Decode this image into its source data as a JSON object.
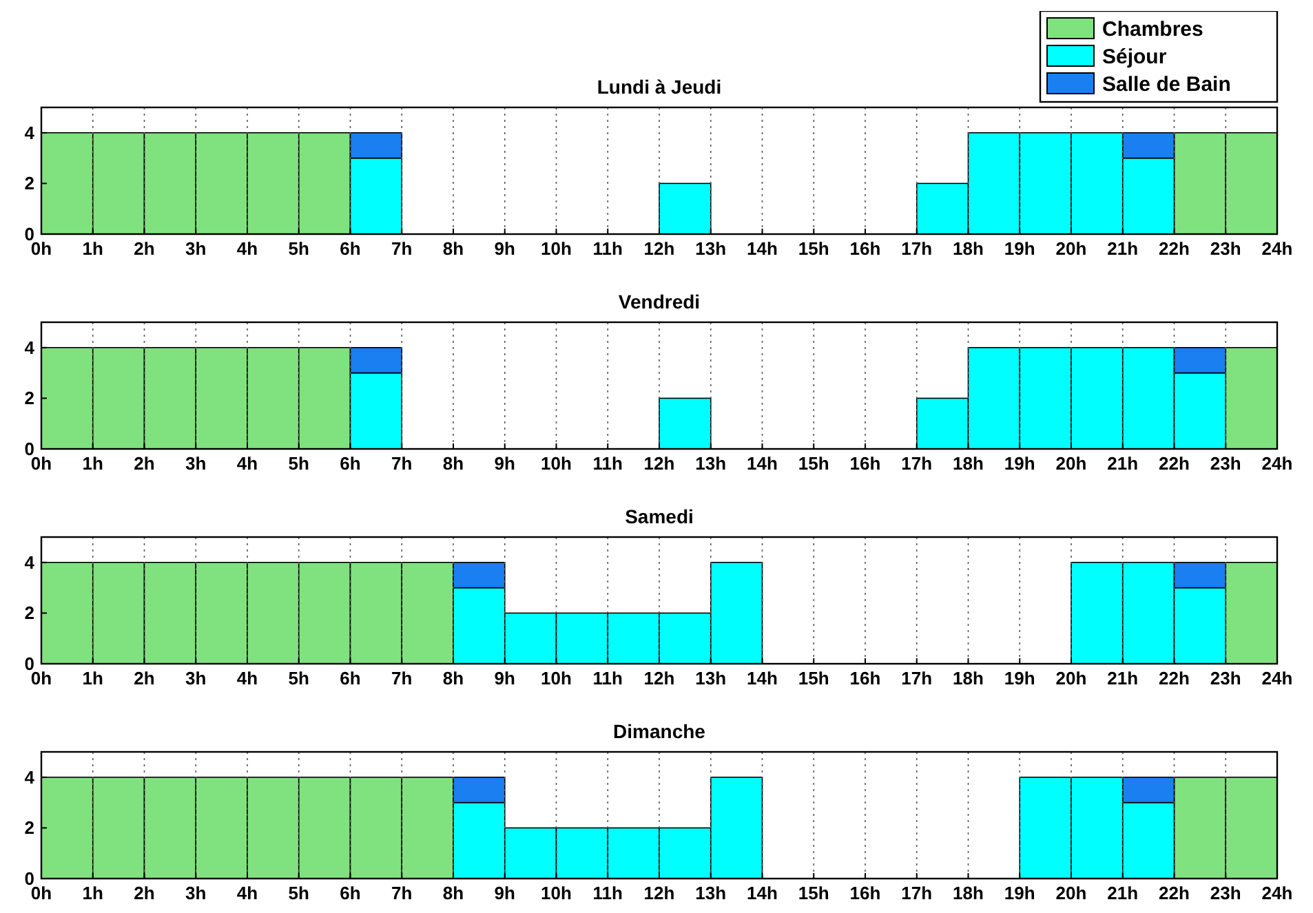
{
  "chart_data": [
    {
      "type": "bar",
      "title": "Lundi à Jeudi",
      "stacked": true,
      "grid": "x",
      "legend": "top right",
      "x": [
        0.5,
        1.5,
        2.5,
        3.5,
        4.5,
        5.5,
        6.5,
        7.5,
        8.5,
        9.5,
        10.5,
        11.5,
        12.5,
        13.5,
        14.5,
        15.5,
        16.5,
        17.5,
        18.5,
        19.5,
        20.5,
        21.5,
        22.5,
        23.5
      ],
      "xlim": [
        0,
        24
      ],
      "xticks": [
        {
          "value": 0,
          "label": "0h"
        },
        {
          "value": 1,
          "label": "1h"
        },
        {
          "value": 2,
          "label": "2h"
        },
        {
          "value": 3,
          "label": "3h"
        },
        {
          "value": 4,
          "label": "4h"
        },
        {
          "value": 5,
          "label": "5h"
        },
        {
          "value": 6,
          "label": "6h"
        },
        {
          "value": 7,
          "label": "7h"
        },
        {
          "value": 8,
          "label": "8h"
        },
        {
          "value": 9,
          "label": "9h"
        },
        {
          "value": 10,
          "label": "10h"
        },
        {
          "value": 11,
          "label": "11h"
        },
        {
          "value": 12,
          "label": "12h"
        },
        {
          "value": 13,
          "label": "13h"
        },
        {
          "value": 14,
          "label": "14h"
        },
        {
          "value": 15,
          "label": "15h"
        },
        {
          "value": 16,
          "label": "16h"
        },
        {
          "value": 17,
          "label": "17h"
        },
        {
          "value": 18,
          "label": "18h"
        },
        {
          "value": 19,
          "label": "19h"
        },
        {
          "value": 20,
          "label": "20h"
        },
        {
          "value": 21,
          "label": "21h"
        },
        {
          "value": 22,
          "label": "22h"
        },
        {
          "value": 23,
          "label": "23h"
        },
        {
          "value": 24,
          "label": "24h"
        }
      ],
      "ylim": [
        0,
        5
      ],
      "yticks": [
        0,
        2,
        4
      ],
      "series": [
        {
          "name": "Chambres",
          "color": "#80e27e",
          "values": [
            4,
            4,
            4,
            4,
            4,
            4,
            0,
            0,
            0,
            0,
            0,
            0,
            0,
            0,
            0,
            0,
            0,
            0,
            0,
            0,
            0,
            0,
            4,
            4
          ]
        },
        {
          "name": "Séjour",
          "color": "#00ffff",
          "values": [
            0,
            0,
            0,
            0,
            0,
            0,
            3,
            0,
            0,
            0,
            0,
            0,
            2,
            0,
            0,
            0,
            0,
            2,
            4,
            4,
            4,
            3,
            0,
            0
          ]
        },
        {
          "name": "Salle de Bain",
          "color": "#1a7ff0",
          "values": [
            0,
            0,
            0,
            0,
            0,
            0,
            1,
            0,
            0,
            0,
            0,
            0,
            0,
            0,
            0,
            0,
            0,
            0,
            0,
            0,
            0,
            1,
            0,
            0
          ]
        }
      ]
    },
    {
      "type": "bar",
      "title": "Vendredi",
      "stacked": true,
      "grid": "x",
      "x": [
        0.5,
        1.5,
        2.5,
        3.5,
        4.5,
        5.5,
        6.5,
        7.5,
        8.5,
        9.5,
        10.5,
        11.5,
        12.5,
        13.5,
        14.5,
        15.5,
        16.5,
        17.5,
        18.5,
        19.5,
        20.5,
        21.5,
        22.5,
        23.5
      ],
      "xlim": [
        0,
        24
      ],
      "xticks": [
        {
          "value": 0,
          "label": "0h"
        },
        {
          "value": 1,
          "label": "1h"
        },
        {
          "value": 2,
          "label": "2h"
        },
        {
          "value": 3,
          "label": "3h"
        },
        {
          "value": 4,
          "label": "4h"
        },
        {
          "value": 5,
          "label": "5h"
        },
        {
          "value": 6,
          "label": "6h"
        },
        {
          "value": 7,
          "label": "7h"
        },
        {
          "value": 8,
          "label": "8h"
        },
        {
          "value": 9,
          "label": "9h"
        },
        {
          "value": 10,
          "label": "10h"
        },
        {
          "value": 11,
          "label": "11h"
        },
        {
          "value": 12,
          "label": "12h"
        },
        {
          "value": 13,
          "label": "13h"
        },
        {
          "value": 14,
          "label": "14h"
        },
        {
          "value": 15,
          "label": "15h"
        },
        {
          "value": 16,
          "label": "16h"
        },
        {
          "value": 17,
          "label": "17h"
        },
        {
          "value": 18,
          "label": "18h"
        },
        {
          "value": 19,
          "label": "19h"
        },
        {
          "value": 20,
          "label": "20h"
        },
        {
          "value": 21,
          "label": "21h"
        },
        {
          "value": 22,
          "label": "22h"
        },
        {
          "value": 23,
          "label": "23h"
        },
        {
          "value": 24,
          "label": "24h"
        }
      ],
      "ylim": [
        0,
        5
      ],
      "yticks": [
        0,
        2,
        4
      ],
      "series": [
        {
          "color": "#80e27e",
          "values": [
            4,
            4,
            4,
            4,
            4,
            4,
            0,
            0,
            0,
            0,
            0,
            0,
            0,
            0,
            0,
            0,
            0,
            0,
            0,
            0,
            0,
            0,
            0,
            4
          ]
        },
        {
          "color": "#00ffff",
          "values": [
            0,
            0,
            0,
            0,
            0,
            0,
            3,
            0,
            0,
            0,
            0,
            0,
            2,
            0,
            0,
            0,
            0,
            2,
            4,
            4,
            4,
            4,
            3,
            0
          ]
        },
        {
          "color": "#1a7ff0",
          "values": [
            0,
            0,
            0,
            0,
            0,
            0,
            1,
            0,
            0,
            0,
            0,
            0,
            0,
            0,
            0,
            0,
            0,
            0,
            0,
            0,
            0,
            0,
            1,
            0
          ]
        }
      ]
    },
    {
      "type": "bar",
      "title": "Samedi",
      "stacked": true,
      "grid": "x",
      "x": [
        0.5,
        1.5,
        2.5,
        3.5,
        4.5,
        5.5,
        6.5,
        7.5,
        8.5,
        9.5,
        10.5,
        11.5,
        12.5,
        13.5,
        14.5,
        15.5,
        16.5,
        17.5,
        18.5,
        19.5,
        20.5,
        21.5,
        22.5,
        23.5
      ],
      "xlim": [
        0,
        24
      ],
      "xticks": [
        {
          "value": 0,
          "label": "0h"
        },
        {
          "value": 1,
          "label": "1h"
        },
        {
          "value": 2,
          "label": "2h"
        },
        {
          "value": 3,
          "label": "3h"
        },
        {
          "value": 4,
          "label": "4h"
        },
        {
          "value": 5,
          "label": "5h"
        },
        {
          "value": 6,
          "label": "6h"
        },
        {
          "value": 7,
          "label": "7h"
        },
        {
          "value": 8,
          "label": "8h"
        },
        {
          "value": 9,
          "label": "9h"
        },
        {
          "value": 10,
          "label": "10h"
        },
        {
          "value": 11,
          "label": "11h"
        },
        {
          "value": 12,
          "label": "12h"
        },
        {
          "value": 13,
          "label": "13h"
        },
        {
          "value": 14,
          "label": "14h"
        },
        {
          "value": 15,
          "label": "15h"
        },
        {
          "value": 16,
          "label": "16h"
        },
        {
          "value": 17,
          "label": "17h"
        },
        {
          "value": 18,
          "label": "18h"
        },
        {
          "value": 19,
          "label": "19h"
        },
        {
          "value": 20,
          "label": "20h"
        },
        {
          "value": 21,
          "label": "21h"
        },
        {
          "value": 22,
          "label": "22h"
        },
        {
          "value": 23,
          "label": "23h"
        },
        {
          "value": 24,
          "label": "24h"
        }
      ],
      "ylim": [
        0,
        5
      ],
      "yticks": [
        0,
        2,
        4
      ],
      "series": [
        {
          "color": "#80e27e",
          "values": [
            4,
            4,
            4,
            4,
            4,
            4,
            4,
            4,
            0,
            0,
            0,
            0,
            0,
            0,
            0,
            0,
            0,
            0,
            0,
            0,
            0,
            0,
            0,
            4
          ]
        },
        {
          "color": "#00ffff",
          "values": [
            0,
            0,
            0,
            0,
            0,
            0,
            0,
            0,
            3,
            2,
            2,
            2,
            2,
            4,
            0,
            0,
            0,
            0,
            0,
            0,
            4,
            4,
            3,
            0
          ]
        },
        {
          "color": "#1a7ff0",
          "values": [
            0,
            0,
            0,
            0,
            0,
            0,
            0,
            0,
            1,
            0,
            0,
            0,
            0,
            0,
            0,
            0,
            0,
            0,
            0,
            0,
            0,
            0,
            1,
            0
          ]
        }
      ]
    },
    {
      "type": "bar",
      "title": "Dimanche",
      "stacked": true,
      "grid": "x",
      "x": [
        0.5,
        1.5,
        2.5,
        3.5,
        4.5,
        5.5,
        6.5,
        7.5,
        8.5,
        9.5,
        10.5,
        11.5,
        12.5,
        13.5,
        14.5,
        15.5,
        16.5,
        17.5,
        18.5,
        19.5,
        20.5,
        21.5,
        22.5,
        23.5
      ],
      "xlim": [
        0,
        24
      ],
      "xticks": [
        {
          "value": 0,
          "label": "0h"
        },
        {
          "value": 1,
          "label": "1h"
        },
        {
          "value": 2,
          "label": "2h"
        },
        {
          "value": 3,
          "label": "3h"
        },
        {
          "value": 4,
          "label": "4h"
        },
        {
          "value": 5,
          "label": "5h"
        },
        {
          "value": 6,
          "label": "6h"
        },
        {
          "value": 7,
          "label": "7h"
        },
        {
          "value": 8,
          "label": "8h"
        },
        {
          "value": 9,
          "label": "9h"
        },
        {
          "value": 10,
          "label": "10h"
        },
        {
          "value": 11,
          "label": "11h"
        },
        {
          "value": 12,
          "label": "12h"
        },
        {
          "value": 13,
          "label": "13h"
        },
        {
          "value": 14,
          "label": "14h"
        },
        {
          "value": 15,
          "label": "15h"
        },
        {
          "value": 16,
          "label": "16h"
        },
        {
          "value": 17,
          "label": "17h"
        },
        {
          "value": 18,
          "label": "18h"
        },
        {
          "value": 19,
          "label": "19h"
        },
        {
          "value": 20,
          "label": "20h"
        },
        {
          "value": 21,
          "label": "21h"
        },
        {
          "value": 22,
          "label": "22h"
        },
        {
          "value": 23,
          "label": "23h"
        },
        {
          "value": 24,
          "label": "24h"
        }
      ],
      "ylim": [
        0,
        5
      ],
      "yticks": [
        0,
        2,
        4
      ],
      "series": [
        {
          "color": "#80e27e",
          "values": [
            4,
            4,
            4,
            4,
            4,
            4,
            4,
            4,
            0,
            0,
            0,
            0,
            0,
            0,
            0,
            0,
            0,
            0,
            0,
            0,
            0,
            0,
            4,
            4
          ]
        },
        {
          "color": "#00ffff",
          "values": [
            0,
            0,
            0,
            0,
            0,
            0,
            0,
            0,
            3,
            2,
            2,
            2,
            2,
            4,
            0,
            0,
            0,
            0,
            0,
            4,
            4,
            3,
            0,
            0
          ]
        },
        {
          "color": "#1a7ff0",
          "values": [
            0,
            0,
            0,
            0,
            0,
            0,
            0,
            0,
            1,
            0,
            0,
            0,
            0,
            0,
            0,
            0,
            0,
            0,
            0,
            0,
            0,
            1,
            0,
            0
          ]
        }
      ]
    }
  ]
}
